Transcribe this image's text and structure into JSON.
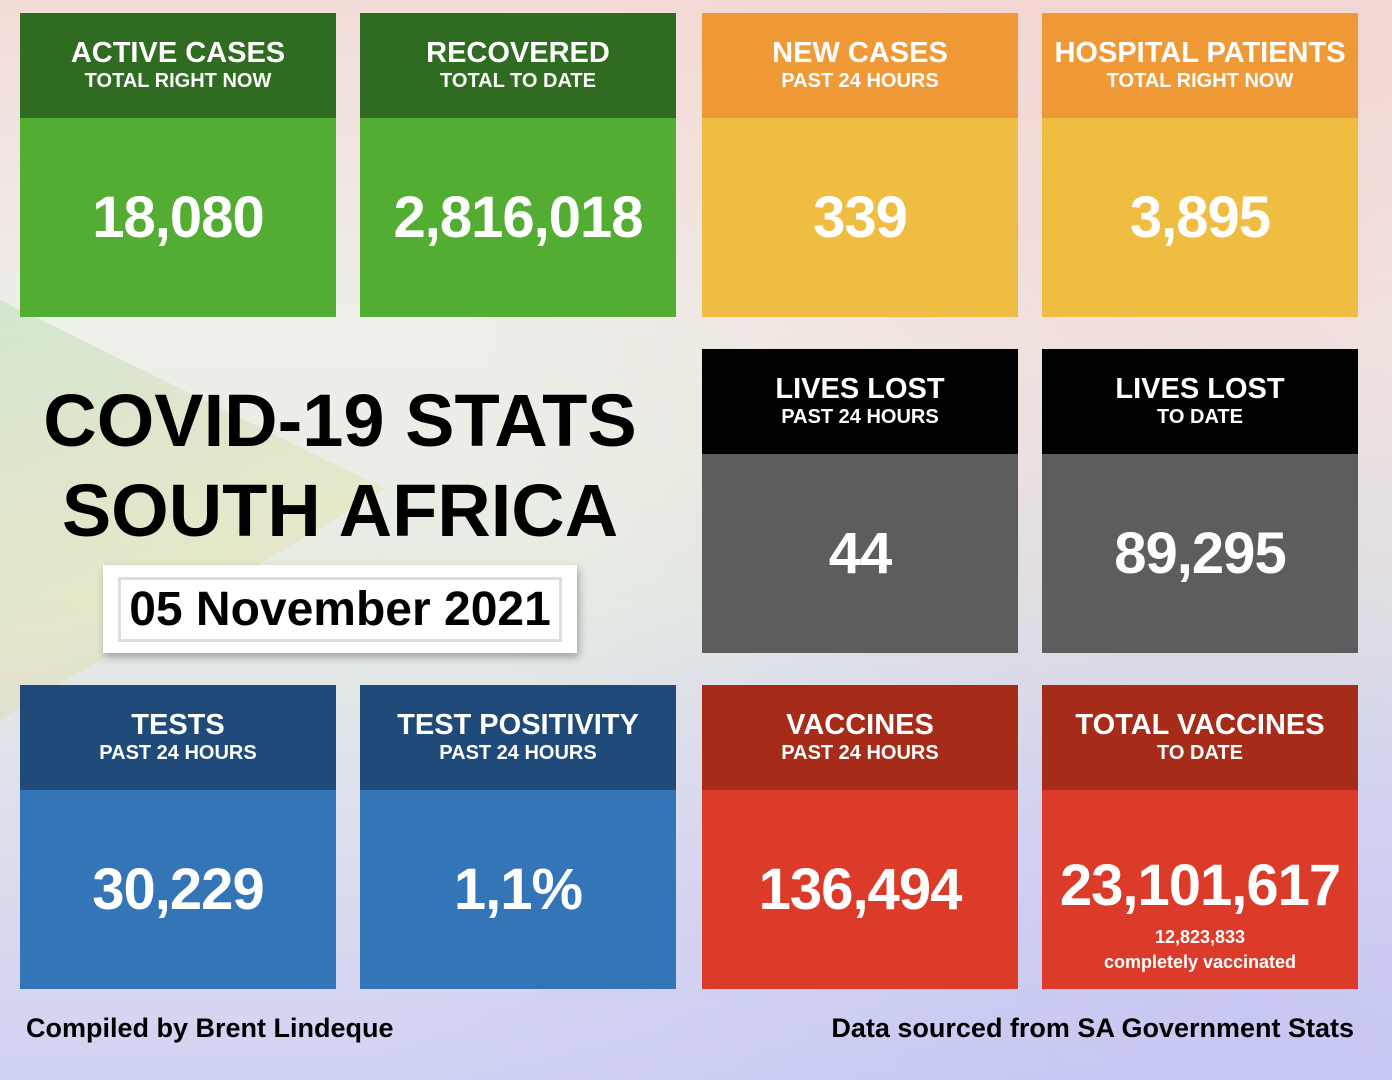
{
  "title": {
    "line1": "COVID-19 STATS",
    "line2": "SOUTH AFRICA",
    "date": "05 November 2021"
  },
  "cards": [
    {
      "title": "ACTIVE CASES",
      "subtitle": "TOTAL RIGHT NOW",
      "value": "18,080"
    },
    {
      "title": "RECOVERED",
      "subtitle": "TOTAL TO DATE",
      "value": "2,816,018"
    },
    {
      "title": "NEW CASES",
      "subtitle": "PAST 24 HOURS",
      "value": "339"
    },
    {
      "title": "HOSPITAL PATIENTS",
      "subtitle": "TOTAL RIGHT NOW",
      "value": "3,895"
    },
    {
      "title": "LIVES LOST",
      "subtitle": "PAST 24 HOURS",
      "value": "44"
    },
    {
      "title": "LIVES LOST",
      "subtitle": "TO DATE",
      "value": "89,295"
    },
    {
      "title": "TESTS",
      "subtitle": "PAST 24 HOURS",
      "value": "30,229"
    },
    {
      "title": "TEST POSITIVITY",
      "subtitle": "PAST 24 HOURS",
      "value": "1,1%"
    },
    {
      "title": "VACCINES",
      "subtitle": "PAST 24 HOURS",
      "value": "136,494"
    },
    {
      "title": "TOTAL VACCINES",
      "subtitle": "TO DATE",
      "value": "23,101,617",
      "note1": "12,823,833",
      "note2": "completely vaccinated"
    }
  ],
  "footer": {
    "left": "Compiled by Brent Lindeque",
    "right": "Data sourced from SA Government Stats"
  }
}
